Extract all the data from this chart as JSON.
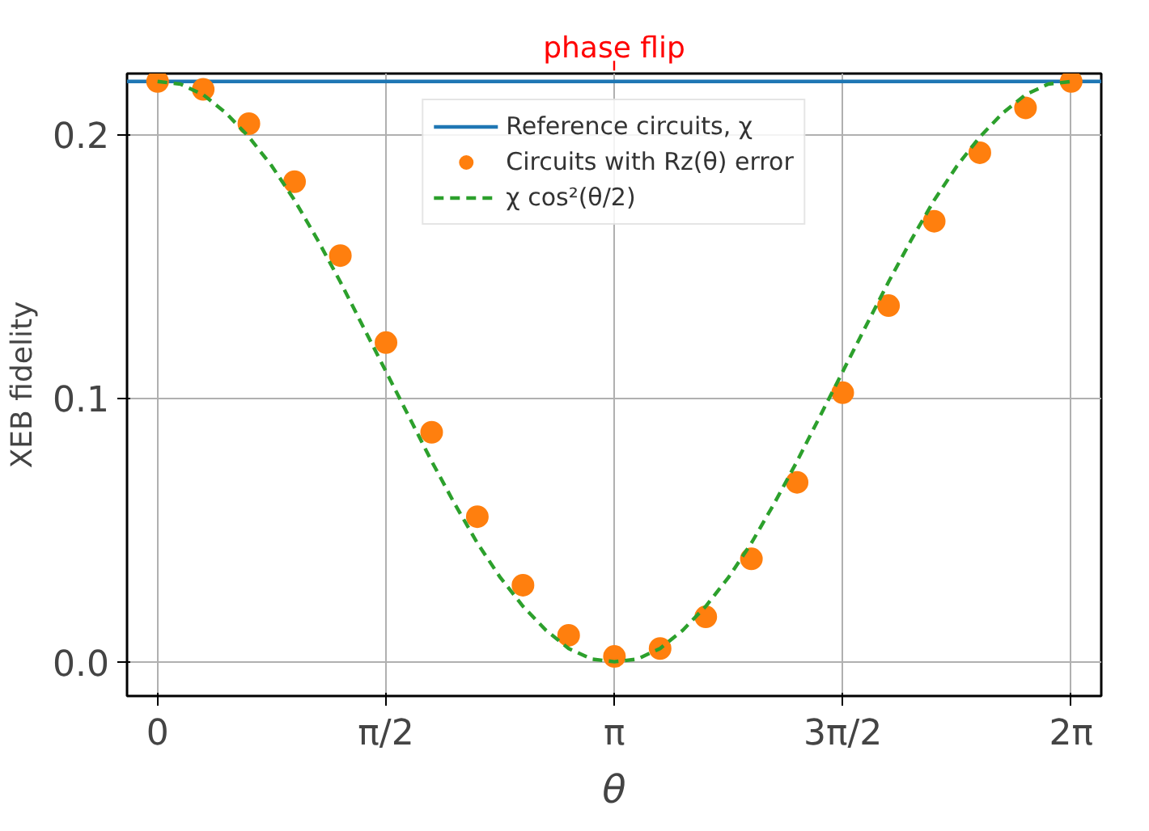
{
  "chart_data": {
    "type": "scatter",
    "xlabel": "θ",
    "ylabel": "XEB fidelity",
    "xlim": [
      -0.21,
      6.49
    ],
    "ylim": [
      -0.013,
      0.223
    ],
    "xticks": [
      {
        "value": 0,
        "label": "0"
      },
      {
        "value": 1.5708,
        "label": "π/2"
      },
      {
        "value": 3.1416,
        "label": "π"
      },
      {
        "value": 4.7124,
        "label": "3π/2"
      },
      {
        "value": 6.2832,
        "label": "2π"
      }
    ],
    "yticks": [
      {
        "value": 0,
        "label": "0.0"
      },
      0.1,
      0.2
    ],
    "grid": true,
    "legend": "top center",
    "annotations": [
      "phase flip"
    ],
    "series": [
      {
        "name": "Reference circuits, χ",
        "type": "line",
        "color": "#1f77b4",
        "line_style": "solid",
        "marker": "none",
        "x": [
          -0.21,
          6.49
        ],
        "values": [
          0.22,
          0.22
        ]
      },
      {
        "name": "Circuits with Rz(θ) error",
        "type": "scatter",
        "color": "#ff7f0e",
        "marker": "circle",
        "x": [
          0,
          0.314,
          0.628,
          0.942,
          1.257,
          1.571,
          1.885,
          2.199,
          2.513,
          2.827,
          3.142,
          3.456,
          3.77,
          4.084,
          4.398,
          4.712,
          5.027,
          5.341,
          5.655,
          5.969,
          6.283
        ],
        "values": [
          0.22,
          0.217,
          0.204,
          0.182,
          0.154,
          0.121,
          0.087,
          0.055,
          0.029,
          0.01,
          0.002,
          0.005,
          0.017,
          0.039,
          0.068,
          0.102,
          0.135,
          0.167,
          0.193,
          0.21,
          0.22
        ]
      },
      {
        "name": "χ cos²(θ/2)",
        "type": "line",
        "color": "#2ca02c",
        "line_style": "dashed",
        "marker": "none",
        "x": [
          0,
          0.157,
          0.314,
          0.471,
          0.628,
          0.785,
          0.942,
          1.1,
          1.257,
          1.414,
          1.571,
          1.728,
          1.885,
          2.042,
          2.199,
          2.356,
          2.513,
          2.67,
          2.827,
          2.985,
          3.142,
          3.299,
          3.456,
          3.613,
          3.77,
          3.927,
          4.084,
          4.241,
          4.398,
          4.555,
          4.712,
          4.869,
          5.027,
          5.184,
          5.341,
          5.498,
          5.655,
          5.812,
          5.969,
          6.126,
          6.283
        ],
        "values": [
          0.22,
          0.219,
          0.215,
          0.208,
          0.199,
          0.188,
          0.175,
          0.16,
          0.144,
          0.127,
          0.11,
          0.093,
          0.076,
          0.06,
          0.045,
          0.032,
          0.021,
          0.012,
          0.005,
          0.001,
          0.0,
          0.001,
          0.005,
          0.012,
          0.021,
          0.032,
          0.045,
          0.06,
          0.076,
          0.093,
          0.11,
          0.127,
          0.144,
          0.16,
          0.175,
          0.188,
          0.199,
          0.208,
          0.215,
          0.219,
          0.22
        ]
      }
    ]
  }
}
